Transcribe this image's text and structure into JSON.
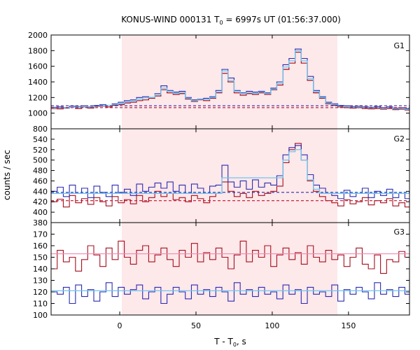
{
  "title_main": "KONUS-WIND 000131 T",
  "title_sub": "0",
  "title_rest": " = 6997s UT (01:56:37.000)",
  "xlabel_main": "T - T",
  "xlabel_sub": "0",
  "xlabel_rest": ", s",
  "ylabel": "counts / sec",
  "colors": {
    "shade": "#fde8ea",
    "red_hist": "#a50f1e",
    "blue_hist": "#2b2bb0",
    "cyan_fit": "#6ec6f0",
    "pink_fit": "#f08ab4",
    "red_bg": "#c0102a",
    "blue_bg": "#2b2bb0"
  },
  "chart_data": [
    {
      "type": "line",
      "name": "G1",
      "x_range": [
        -45,
        190
      ],
      "ylim": [
        800,
        2000
      ],
      "x_ticks": [
        "0",
        "50",
        "100",
        "150"
      ],
      "y_ticks": [
        "800",
        "1000",
        "1200",
        "1400",
        "1600",
        "1800",
        "2000"
      ],
      "shaded_interval": [
        0,
        141
      ],
      "series": [
        {
          "x": [
            -45,
            -41,
            -37,
            -33,
            -29,
            -25,
            -21,
            -17,
            -13,
            -9,
            -5,
            -1,
            3,
            7,
            11,
            15,
            19,
            23,
            27,
            31,
            35,
            39,
            43,
            47,
            51,
            55,
            59,
            63,
            67,
            71,
            75,
            79,
            83,
            87,
            91,
            95,
            99,
            103,
            107,
            111,
            115,
            119,
            123,
            127,
            131,
            135,
            139,
            143,
            147,
            151,
            155,
            159,
            163,
            167,
            171,
            175,
            179,
            183,
            187
          ],
          "values": [
            1060,
            1055,
            1070,
            1075,
            1060,
            1080,
            1065,
            1085,
            1090,
            1080,
            1100,
            1110,
            1130,
            1140,
            1160,
            1170,
            1190,
            1220,
            1300,
            1260,
            1240,
            1250,
            1180,
            1150,
            1170,
            1160,
            1190,
            1260,
            1510,
            1400,
            1260,
            1230,
            1250,
            1240,
            1260,
            1240,
            1300,
            1360,
            1560,
            1640,
            1780,
            1640,
            1420,
            1260,
            1190,
            1120,
            1100,
            1080,
            1070,
            1065,
            1070,
            1060,
            1055,
            1060,
            1050,
            1060,
            1045,
            1050,
            1040
          ]
        },
        {
          "x": [
            -45,
            -41,
            -37,
            -33,
            -29,
            -25,
            -21,
            -17,
            -13,
            -9,
            -5,
            -1,
            3,
            7,
            11,
            15,
            19,
            23,
            27,
            31,
            35,
            39,
            43,
            47,
            51,
            55,
            59,
            63,
            67,
            71,
            75,
            79,
            83,
            87,
            91,
            95,
            99,
            103,
            107,
            111,
            115,
            119,
            123,
            127,
            131,
            135,
            139,
            143,
            147,
            151,
            155,
            159,
            163,
            167,
            171,
            175,
            179,
            183,
            187
          ],
          "values": [
            1075,
            1080,
            1065,
            1090,
            1085,
            1095,
            1080,
            1100,
            1110,
            1100,
            1120,
            1140,
            1160,
            1170,
            1200,
            1210,
            1200,
            1250,
            1350,
            1290,
            1270,
            1280,
            1200,
            1170,
            1180,
            1190,
            1210,
            1290,
            1560,
            1450,
            1290,
            1260,
            1280,
            1270,
            1280,
            1260,
            1320,
            1400,
            1620,
            1700,
            1820,
            1700,
            1470,
            1290,
            1210,
            1140,
            1120,
            1100,
            1095,
            1085,
            1090,
            1080,
            1075,
            1085,
            1070,
            1080,
            1065,
            1070,
            1060
          ]
        },
        {
          "x": [
            -45,
            -41,
            -37,
            -33,
            -29,
            -25,
            -21,
            -17,
            -13,
            -9,
            -5,
            -1,
            3,
            7,
            11,
            15,
            19,
            23,
            27,
            31,
            35,
            39,
            43,
            47,
            51,
            55,
            59,
            63,
            67,
            71,
            75,
            79,
            83,
            87,
            91,
            95,
            99,
            103,
            107,
            111,
            115,
            119,
            123,
            127,
            131,
            135,
            139,
            143,
            147,
            151,
            155,
            159,
            163,
            167,
            171,
            175,
            179,
            183,
            187
          ],
          "values": [
            1065,
            1068,
            1070,
            1075,
            1078,
            1082,
            1085,
            1090,
            1095,
            1100,
            1110,
            1125,
            1145,
            1160,
            1180,
            1195,
            1200,
            1240,
            1320,
            1280,
            1255,
            1265,
            1190,
            1160,
            1175,
            1175,
            1200,
            1270,
            1540,
            1420,
            1280,
            1250,
            1265,
            1255,
            1270,
            1250,
            1310,
            1380,
            1590,
            1670,
            1800,
            1670,
            1440,
            1275,
            1200,
            1130,
            1110,
            1090,
            1085,
            1075,
            1080,
            1070,
            1065,
            1072,
            1060,
            1070,
            1055,
            1060,
            1050
          ]
        },
        {
          "x": [
            -45,
            190
          ],
          "values": [
            1070,
            1070
          ]
        },
        {
          "x": [
            -45,
            190
          ],
          "values": [
            1095,
            1095
          ]
        }
      ]
    },
    {
      "type": "line",
      "name": "G2",
      "x_range": [
        -45,
        190
      ],
      "ylim": [
        380,
        560
      ],
      "x_ticks": [
        "0",
        "50",
        "100",
        "150"
      ],
      "y_ticks": [
        "380",
        "400",
        "420",
        "440",
        "460",
        "480",
        "500",
        "520",
        "540"
      ],
      "shaded_interval": [
        0,
        141
      ],
      "series": [
        {
          "x": [
            -45,
            -41,
            -37,
            -33,
            -29,
            -25,
            -21,
            -17,
            -13,
            -9,
            -5,
            -1,
            3,
            7,
            11,
            15,
            19,
            23,
            27,
            31,
            35,
            39,
            43,
            47,
            51,
            55,
            59,
            63,
            67,
            71,
            75,
            79,
            83,
            87,
            91,
            95,
            99,
            103,
            107,
            111,
            115,
            119,
            123,
            127,
            131,
            135,
            139,
            143,
            147,
            151,
            155,
            159,
            163,
            167,
            171,
            175,
            179,
            183,
            187
          ],
          "values": [
            420,
            425,
            410,
            432,
            418,
            426,
            415,
            428,
            420,
            412,
            430,
            418,
            424,
            416,
            432,
            420,
            428,
            440,
            430,
            436,
            424,
            428,
            420,
            432,
            426,
            418,
            430,
            436,
            458,
            440,
            430,
            436,
            428,
            440,
            432,
            436,
            440,
            450,
            495,
            520,
            532,
            500,
            460,
            440,
            430,
            422,
            418,
            412,
            424,
            416,
            420,
            428,
            414,
            422,
            418,
            426,
            412,
            418,
            410
          ]
        },
        {
          "x": [
            -45,
            -41,
            -37,
            -33,
            -29,
            -25,
            -21,
            -17,
            -13,
            -9,
            -5,
            -1,
            3,
            7,
            11,
            15,
            19,
            23,
            27,
            31,
            35,
            39,
            43,
            47,
            51,
            55,
            59,
            63,
            67,
            71,
            75,
            79,
            83,
            87,
            91,
            95,
            99,
            103,
            107,
            111,
            115,
            119,
            123,
            127,
            131,
            135,
            139,
            143,
            147,
            151,
            155,
            159,
            163,
            167,
            171,
            175,
            179,
            183,
            187
          ],
          "values": [
            440,
            448,
            430,
            452,
            436,
            446,
            428,
            450,
            438,
            430,
            452,
            438,
            444,
            432,
            454,
            440,
            448,
            456,
            446,
            458,
            440,
            452,
            436,
            454,
            446,
            436,
            450,
            452,
            490,
            458,
            448,
            460,
            444,
            462,
            448,
            456,
            452,
            470,
            510,
            524,
            528,
            510,
            472,
            452,
            446,
            436,
            432,
            426,
            442,
            430,
            436,
            446,
            428,
            440,
            432,
            444,
            428,
            436,
            426
          ]
        },
        {
          "x": [
            -45,
            -41,
            -37,
            -33,
            -29,
            -25,
            -21,
            -17,
            -13,
            -9,
            -5,
            -1,
            3,
            7,
            11,
            15,
            19,
            23,
            27,
            31,
            35,
            39,
            43,
            47,
            51,
            55,
            59,
            63,
            67,
            71,
            75,
            79,
            83,
            87,
            91,
            95,
            99,
            103,
            107,
            111,
            115,
            119,
            123,
            127,
            131,
            135,
            139,
            143,
            147,
            151,
            155,
            159,
            163,
            167,
            171,
            175,
            179,
            183,
            187
          ],
          "values": [
            436,
            436,
            436,
            436,
            436,
            436,
            436,
            436,
            436,
            436,
            436,
            436,
            436,
            436,
            436,
            436,
            436,
            436,
            436,
            436,
            436,
            436,
            436,
            436,
            436,
            436,
            436,
            436,
            466,
            466,
            466,
            466,
            466,
            466,
            466,
            466,
            466,
            466,
            500,
            516,
            520,
            500,
            462,
            444,
            436,
            436,
            436,
            436,
            436,
            436,
            436,
            436,
            436,
            436,
            436,
            436,
            436,
            436,
            436
          ]
        },
        {
          "x": [
            -45,
            190
          ],
          "values": [
            422,
            422
          ]
        },
        {
          "x": [
            -45,
            190
          ],
          "values": [
            438,
            438
          ]
        }
      ]
    },
    {
      "type": "line",
      "name": "G3",
      "x_range": [
        -45,
        190
      ],
      "ylim": [
        100,
        180
      ],
      "x_ticks": [
        "0",
        "50",
        "100",
        "150"
      ],
      "y_ticks": [
        "100",
        "110",
        "120",
        "130",
        "140",
        "150",
        "160",
        "170"
      ],
      "shaded_interval": [
        0,
        141
      ],
      "series": [
        {
          "x": [
            -45,
            -41,
            -37,
            -33,
            -29,
            -25,
            -21,
            -17,
            -13,
            -9,
            -5,
            -1,
            3,
            7,
            11,
            15,
            19,
            23,
            27,
            31,
            35,
            39,
            43,
            47,
            51,
            55,
            59,
            63,
            67,
            71,
            75,
            79,
            83,
            87,
            91,
            95,
            99,
            103,
            107,
            111,
            115,
            119,
            123,
            127,
            131,
            135,
            139,
            143,
            147,
            151,
            155,
            159,
            163,
            167,
            171,
            175,
            179,
            183,
            187
          ],
          "values": [
            140,
            156,
            146,
            150,
            138,
            148,
            160,
            152,
            142,
            158,
            148,
            164,
            150,
            144,
            156,
            160,
            146,
            152,
            158,
            148,
            142,
            156,
            150,
            162,
            146,
            154,
            148,
            158,
            150,
            140,
            152,
            164,
            146,
            156,
            150,
            160,
            142,
            152,
            158,
            148,
            154,
            144,
            160,
            150,
            146,
            156,
            148,
            152,
            142,
            150,
            158,
            144,
            140,
            152,
            136,
            148,
            146,
            155,
            150
          ]
        },
        {
          "x": [
            -45,
            190
          ],
          "values": [
            153,
            153
          ]
        },
        {
          "x": [
            -45,
            -41,
            -37,
            -33,
            -29,
            -25,
            -21,
            -17,
            -13,
            -9,
            -5,
            -1,
            3,
            7,
            11,
            15,
            19,
            23,
            27,
            31,
            35,
            39,
            43,
            47,
            51,
            55,
            59,
            63,
            67,
            71,
            75,
            79,
            83,
            87,
            91,
            95,
            99,
            103,
            107,
            111,
            115,
            119,
            123,
            127,
            131,
            135,
            139,
            143,
            147,
            151,
            155,
            159,
            163,
            167,
            171,
            175,
            179,
            183,
            187
          ],
          "values": [
            120,
            118,
            124,
            110,
            126,
            116,
            122,
            112,
            120,
            128,
            116,
            124,
            118,
            122,
            126,
            114,
            120,
            124,
            110,
            118,
            124,
            120,
            114,
            126,
            118,
            122,
            116,
            124,
            120,
            112,
            128,
            118,
            122,
            116,
            124,
            118,
            120,
            114,
            126,
            118,
            122,
            110,
            124,
            118,
            120,
            116,
            126,
            112,
            122,
            118,
            124,
            120,
            114,
            128,
            118,
            122,
            116,
            124,
            118
          ]
        },
        {
          "x": [
            -45,
            190
          ],
          "values": [
            121,
            121
          ]
        }
      ]
    }
  ]
}
